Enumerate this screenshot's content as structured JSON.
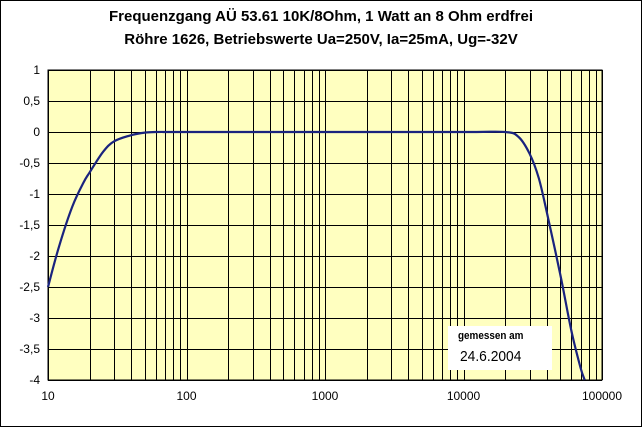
{
  "chart_data": {
    "type": "line",
    "title": "Frequenzgang AÜ 53.61 10K/8Ohm, 1 Watt an 8 Ohm erdfrei",
    "subtitle": "Röhre 1626, Betriebswerte Ua=250V, Ia=25mA, Ug=-32V",
    "xlabel": "",
    "ylabel": "",
    "x_scale": "log",
    "xlim": [
      10,
      100000
    ],
    "ylim": [
      -4,
      1
    ],
    "x_ticks": [
      "10",
      "100",
      "1000",
      "10000",
      "100000"
    ],
    "y_ticks": [
      "1",
      "0,5",
      "0",
      "-0,5",
      "-1",
      "-1,5",
      "-2",
      "-2,5",
      "-3",
      "-3,5",
      "-4"
    ],
    "grid": true,
    "background": "#ffffc0",
    "line_color": "#1a237e",
    "series": [
      {
        "x": [
          10,
          12,
          15,
          18,
          20,
          25,
          30,
          40,
          50,
          60,
          100,
          1000,
          10000,
          20000,
          25000,
          30000,
          35000,
          40000,
          50000,
          60000,
          70000,
          75000
        ],
        "y": [
          -2.5,
          -1.85,
          -1.2,
          -0.82,
          -0.65,
          -0.32,
          -0.15,
          -0.05,
          -0.01,
          0,
          0,
          0,
          0,
          0,
          -0.08,
          -0.35,
          -0.75,
          -1.3,
          -2.3,
          -3.2,
          -3.8,
          -4.0
        ]
      }
    ],
    "annotation": {
      "line1": "gemessen am",
      "line2": "24.6.2004"
    }
  }
}
